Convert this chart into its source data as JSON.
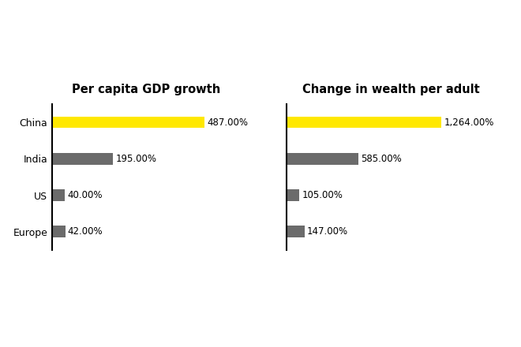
{
  "categories": [
    "China",
    "India",
    "US",
    "Europe"
  ],
  "gdp_values": [
    487,
    195,
    40,
    42
  ],
  "wealth_values": [
    1264,
    585,
    105,
    147
  ],
  "gdp_labels": [
    "487.00%",
    "195.00%",
    "40.00%",
    "42.00%"
  ],
  "wealth_labels": [
    "1,264.00%",
    "585.00%",
    "105.00%",
    "147.00%"
  ],
  "china_color": "#FFE800",
  "other_color": "#6B6B6B",
  "title_gdp": "Per capita GDP growth",
  "title_wealth": "Change in wealth per adult",
  "background_color": "#FFFFFF",
  "title_fontsize": 10.5,
  "label_fontsize": 8.5,
  "tick_fontsize": 9,
  "bar_height": 0.32
}
